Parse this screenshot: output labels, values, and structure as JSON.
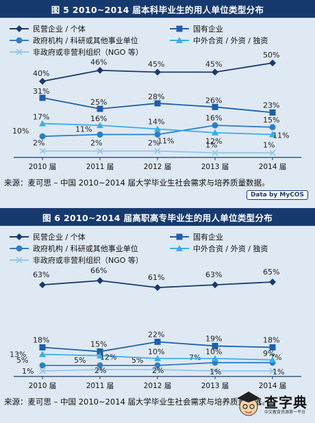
{
  "chart_data": [
    {
      "type": "line",
      "title": "图 5  2010~2014 届本科毕业生的用人单位类型分布",
      "categories": [
        "2010 届",
        "2011 届",
        "2012 届",
        "2013 届",
        "2014 届"
      ],
      "series": [
        {
          "name": "民营企业 / 个体",
          "values": [
            40,
            46,
            45,
            45,
            50
          ],
          "labels": [
            "40%",
            "46%",
            "45%",
            "45%",
            "50%"
          ],
          "color": "#173a6e",
          "marker": "diamond"
        },
        {
          "name": "国有企业",
          "values": [
            31,
            25,
            28,
            26,
            23
          ],
          "labels": [
            "31%",
            "25%",
            "28%",
            "26%",
            "23%"
          ],
          "color": "#1e5fa8",
          "marker": "square"
        },
        {
          "name": "政府机构 / 科研或其他事业单位",
          "values": [
            10,
            11,
            11,
            16,
            15
          ],
          "labels": [
            "10%",
            "11%",
            "11%",
            "16%",
            "15%"
          ],
          "color": "#2b7fc4",
          "marker": "circle"
        },
        {
          "name": "中外合资 / 外资 / 独资",
          "values": [
            17,
            16,
            14,
            12,
            11
          ],
          "labels": [
            "17%",
            "16%",
            "14%",
            "12%",
            "11%"
          ],
          "color": "#3aaee6",
          "marker": "triangle"
        },
        {
          "name": "非政府或非营利组织（NGO 等）",
          "values": [
            2,
            2,
            2,
            1,
            1
          ],
          "labels": [
            "2%",
            "2%",
            "2%",
            "1%",
            "1%"
          ],
          "color": "#8fc8ea",
          "marker": "cross"
        }
      ],
      "legend": "top",
      "source": "来源：麦可思 – 中国 2010~2014 届大学毕业生社会需求与培养质量数据。",
      "credit": "Data by MyCOS"
    },
    {
      "type": "line",
      "title": "图 6  2010~2014 届高职高专毕业生的用人单位类型分布",
      "categories": [
        "2010 届",
        "2011 届",
        "2012 届",
        "2013 届",
        "2014 届"
      ],
      "series": [
        {
          "name": "民营企业 / 个体",
          "values": [
            63,
            66,
            61,
            63,
            65
          ],
          "labels": [
            "63%",
            "66%",
            "61%",
            "63%",
            "65%"
          ],
          "color": "#173a6e",
          "marker": "diamond"
        },
        {
          "name": "国有企业",
          "values": [
            18,
            15,
            22,
            19,
            18
          ],
          "labels": [
            "18%",
            "15%",
            "22%",
            "19%",
            "18%"
          ],
          "color": "#1e5fa8",
          "marker": "square"
        },
        {
          "name": "政府机构 / 科研或其他事业单位",
          "values": [
            5,
            5,
            5,
            7,
            7
          ],
          "labels": [
            "5%",
            "5%",
            "5%",
            "7%",
            "7%"
          ],
          "color": "#2b7fc4",
          "marker": "circle"
        },
        {
          "name": "中外合资 / 外资 / 独资",
          "values": [
            13,
            12,
            10,
            10,
            9
          ],
          "labels": [
            "13%",
            "12%",
            "10%",
            "10%",
            "9%"
          ],
          "color": "#3aaee6",
          "marker": "triangle"
        },
        {
          "name": "非政府或非营利组织（NGO 等）",
          "values": [
            1,
            2,
            2,
            1,
            1
          ],
          "labels": [
            "1%",
            "2%",
            "2%",
            "1%",
            "1%"
          ],
          "color": "#8fc8ea",
          "marker": "cross"
        }
      ],
      "legend": "top",
      "source": "来源：麦可思 – 中国 2010~2014 届大学毕业生社会需求与培养质量数据。"
    }
  ],
  "watermark": {
    "text": "查字典",
    "sub": "中文教育资源第一平台"
  }
}
